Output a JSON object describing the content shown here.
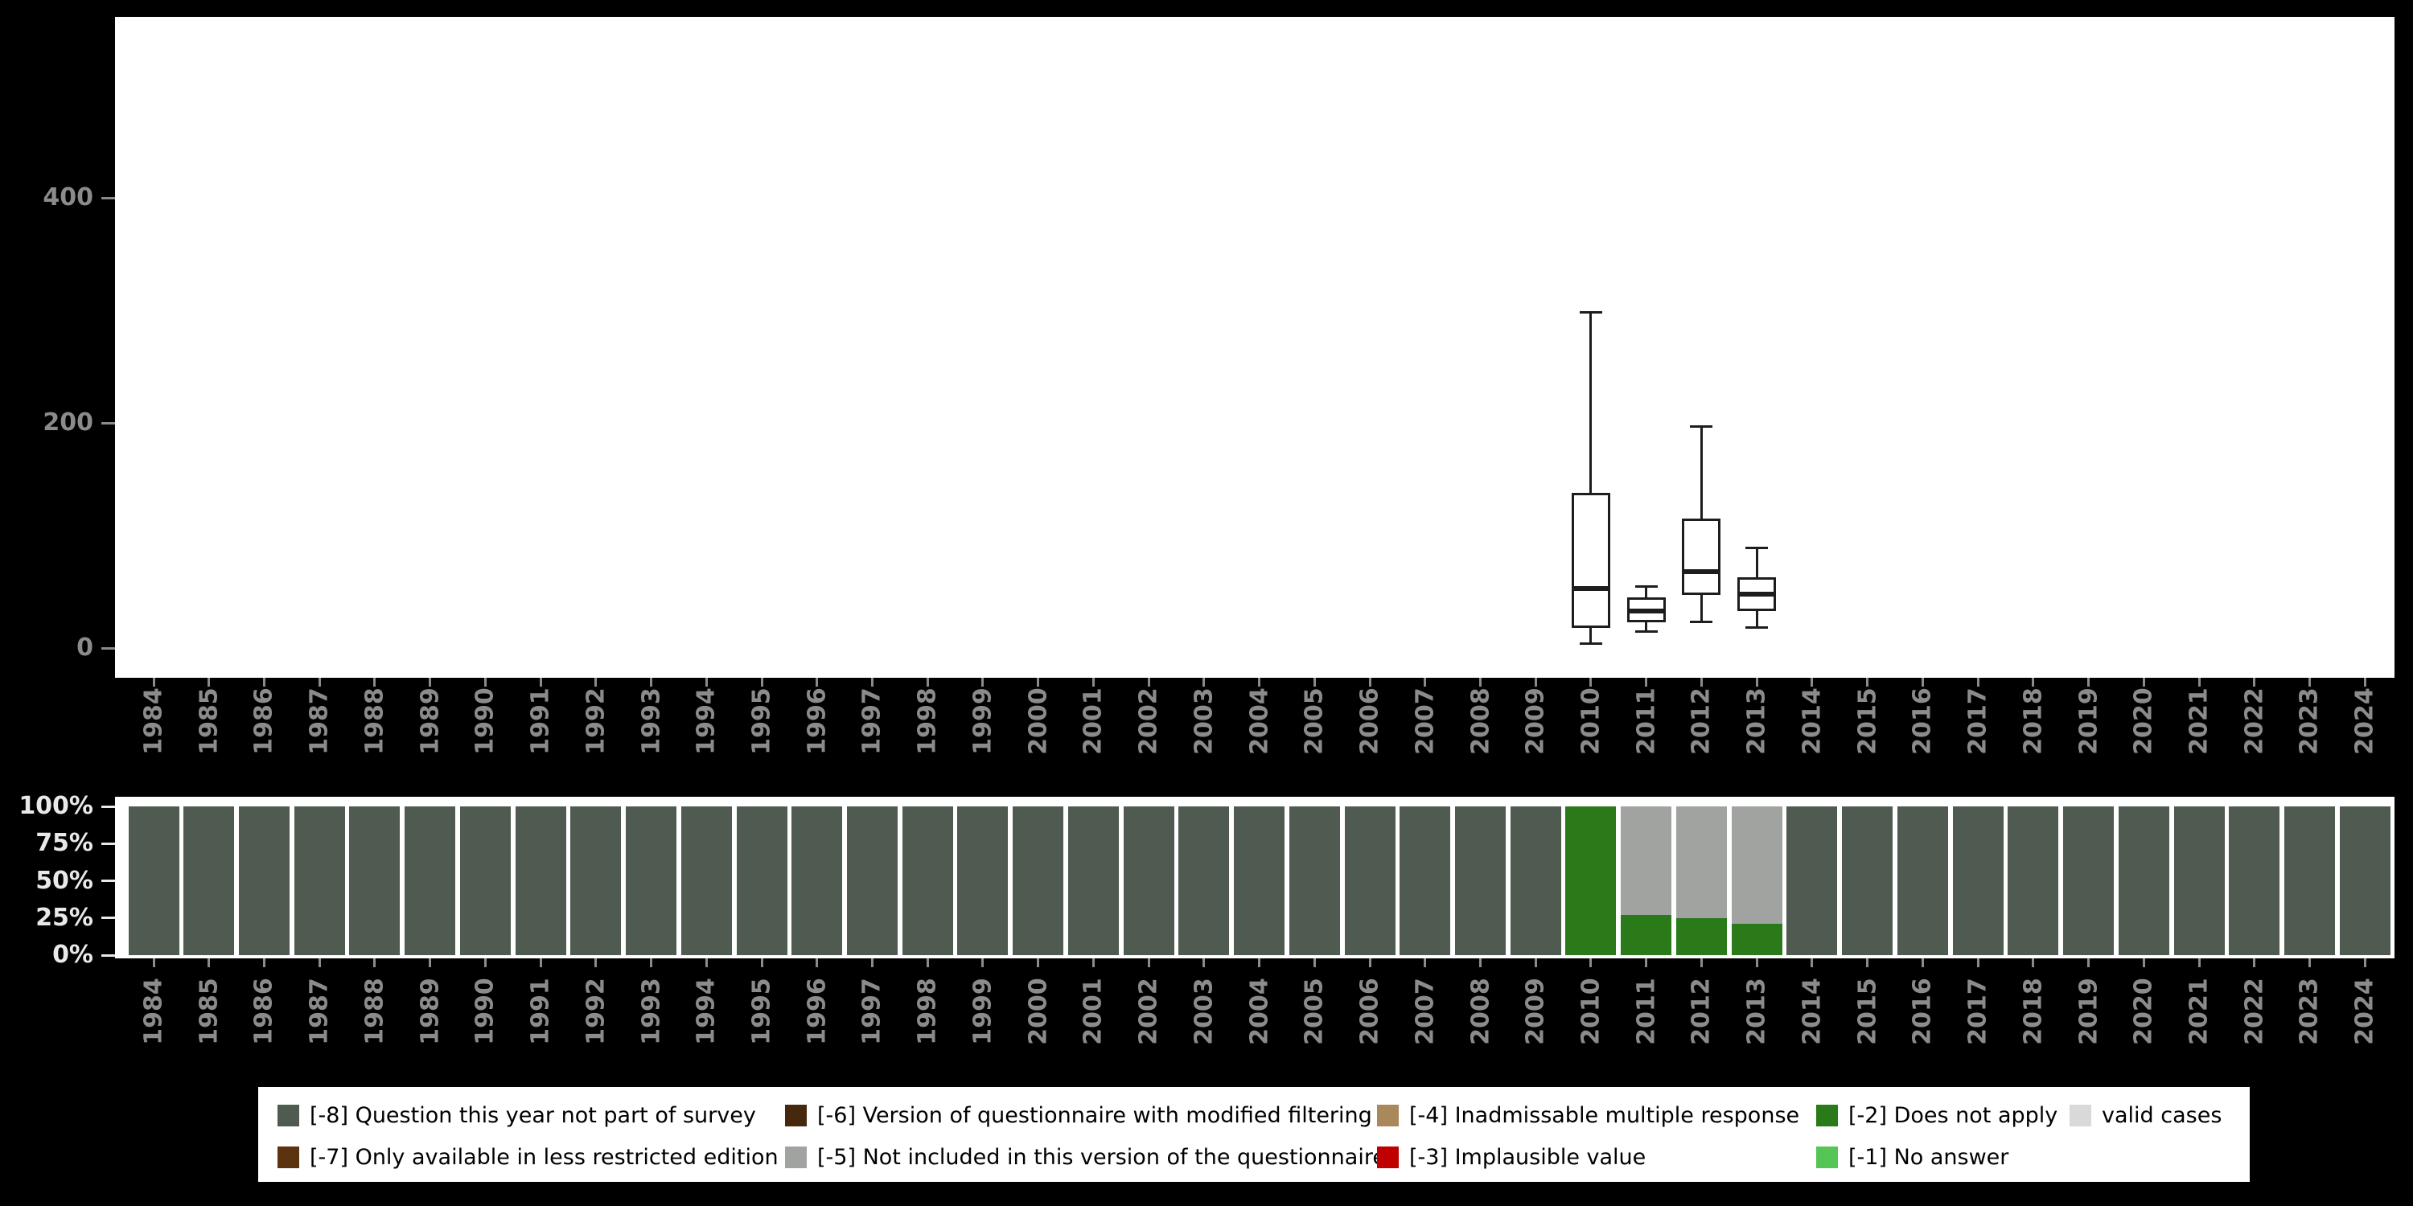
{
  "page": {
    "background": "#000000",
    "panel_background": "#ffffff",
    "axis_text_color": "#8b8b8b",
    "percent_text_color": "#e9e9e9",
    "box_line_color": "#1d1d1d"
  },
  "years": [
    "1984",
    "1985",
    "1986",
    "1987",
    "1988",
    "1989",
    "1990",
    "1991",
    "1992",
    "1993",
    "1994",
    "1995",
    "1996",
    "1997",
    "1998",
    "1999",
    "2000",
    "2001",
    "2002",
    "2003",
    "2004",
    "2005",
    "2006",
    "2007",
    "2008",
    "2009",
    "2010",
    "2011",
    "2012",
    "2013",
    "2014",
    "2015",
    "2016",
    "2017",
    "2018",
    "2019",
    "2020",
    "2021",
    "2022",
    "2023",
    "2024"
  ],
  "palette": {
    "-8": {
      "label": "[-8] Question this year not part of survey",
      "color": "#4f5a50"
    },
    "-7": {
      "label": "[-7] Only available in less restricted edition",
      "color": "#5b330f"
    },
    "-6": {
      "label": "[-6] Version of questionnaire with modified filtering",
      "color": "#46290d"
    },
    "-5": {
      "label": "[-5] Not included in this version of the questionnaire",
      "color": "#a0a3a0"
    },
    "-4": {
      "label": "[-4] Inadmissable multiple response",
      "color": "#a9895c"
    },
    "-3": {
      "label": "[-3] Implausible value",
      "color": "#c00000"
    },
    "-2": {
      "label": "[-2] Does not apply",
      "color": "#2a7a19"
    },
    "-1": {
      "label": "[-1] No answer",
      "color": "#55c655"
    },
    "valid": {
      "label": "valid cases",
      "color": "#d9d9d9"
    }
  },
  "chart_data": [
    {
      "type": "boxplot",
      "title": "",
      "xlabel": "",
      "ylabel": "",
      "ylim": [
        0,
        560
      ],
      "grid": false,
      "yticks": [
        {
          "label": "0",
          "value": 0
        },
        {
          "label": "200",
          "value": 200
        },
        {
          "label": "400",
          "value": 400
        }
      ],
      "boxes": [
        {
          "year": "2010",
          "lower_whisker": 4,
          "q1": 18,
          "median": 53,
          "q3": 138,
          "upper_whisker": 298
        },
        {
          "year": "2011",
          "lower_whisker": 15,
          "q1": 23,
          "median": 33,
          "q3": 45,
          "upper_whisker": 55
        },
        {
          "year": "2012",
          "lower_whisker": 23,
          "q1": 47,
          "median": 68,
          "q3": 115,
          "upper_whisker": 197
        },
        {
          "year": "2013",
          "lower_whisker": 18,
          "q1": 33,
          "median": 48,
          "q3": 63,
          "upper_whisker": 89
        }
      ]
    },
    {
      "type": "bar",
      "stacked": true,
      "unit": "percent",
      "ylim": [
        0,
        100
      ],
      "grid": false,
      "yticks": [
        {
          "label": "0%",
          "value": 0
        },
        {
          "label": "25%",
          "value": 25
        },
        {
          "label": "50%",
          "value": 50
        },
        {
          "label": "75%",
          "value": 75
        },
        {
          "label": "100%",
          "value": 100
        }
      ],
      "bars": [
        {
          "year": "1984",
          "segments": [
            [
              "-8",
              100
            ]
          ]
        },
        {
          "year": "1985",
          "segments": [
            [
              "-8",
              100
            ]
          ]
        },
        {
          "year": "1986",
          "segments": [
            [
              "-8",
              100
            ]
          ]
        },
        {
          "year": "1987",
          "segments": [
            [
              "-8",
              100
            ]
          ]
        },
        {
          "year": "1988",
          "segments": [
            [
              "-8",
              100
            ]
          ]
        },
        {
          "year": "1989",
          "segments": [
            [
              "-8",
              100
            ]
          ]
        },
        {
          "year": "1990",
          "segments": [
            [
              "-8",
              100
            ]
          ]
        },
        {
          "year": "1991",
          "segments": [
            [
              "-8",
              100
            ]
          ]
        },
        {
          "year": "1992",
          "segments": [
            [
              "-8",
              100
            ]
          ]
        },
        {
          "year": "1993",
          "segments": [
            [
              "-8",
              100
            ]
          ]
        },
        {
          "year": "1994",
          "segments": [
            [
              "-8",
              100
            ]
          ]
        },
        {
          "year": "1995",
          "segments": [
            [
              "-8",
              100
            ]
          ]
        },
        {
          "year": "1996",
          "segments": [
            [
              "-8",
              100
            ]
          ]
        },
        {
          "year": "1997",
          "segments": [
            [
              "-8",
              100
            ]
          ]
        },
        {
          "year": "1998",
          "segments": [
            [
              "-8",
              100
            ]
          ]
        },
        {
          "year": "1999",
          "segments": [
            [
              "-8",
              100
            ]
          ]
        },
        {
          "year": "2000",
          "segments": [
            [
              "-8",
              100
            ]
          ]
        },
        {
          "year": "2001",
          "segments": [
            [
              "-8",
              100
            ]
          ]
        },
        {
          "year": "2002",
          "segments": [
            [
              "-8",
              100
            ]
          ]
        },
        {
          "year": "2003",
          "segments": [
            [
              "-8",
              100
            ]
          ]
        },
        {
          "year": "2004",
          "segments": [
            [
              "-8",
              100
            ]
          ]
        },
        {
          "year": "2005",
          "segments": [
            [
              "-8",
              100
            ]
          ]
        },
        {
          "year": "2006",
          "segments": [
            [
              "-8",
              100
            ]
          ]
        },
        {
          "year": "2007",
          "segments": [
            [
              "-8",
              100
            ]
          ]
        },
        {
          "year": "2008",
          "segments": [
            [
              "-8",
              100
            ]
          ]
        },
        {
          "year": "2009",
          "segments": [
            [
              "-8",
              100
            ]
          ]
        },
        {
          "year": "2010",
          "segments": [
            [
              "-2",
              100
            ]
          ]
        },
        {
          "year": "2011",
          "segments": [
            [
              "-2",
              27
            ],
            [
              "-5",
              73
            ]
          ]
        },
        {
          "year": "2012",
          "segments": [
            [
              "-2",
              25
            ],
            [
              "-5",
              75
            ]
          ]
        },
        {
          "year": "2013",
          "segments": [
            [
              "-2",
              21
            ],
            [
              "-5",
              79
            ]
          ]
        },
        {
          "year": "2014",
          "segments": [
            [
              "-8",
              100
            ]
          ]
        },
        {
          "year": "2015",
          "segments": [
            [
              "-8",
              100
            ]
          ]
        },
        {
          "year": "2016",
          "segments": [
            [
              "-8",
              100
            ]
          ]
        },
        {
          "year": "2017",
          "segments": [
            [
              "-8",
              100
            ]
          ]
        },
        {
          "year": "2018",
          "segments": [
            [
              "-8",
              100
            ]
          ]
        },
        {
          "year": "2019",
          "segments": [
            [
              "-8",
              100
            ]
          ]
        },
        {
          "year": "2020",
          "segments": [
            [
              "-8",
              100
            ]
          ]
        },
        {
          "year": "2021",
          "segments": [
            [
              "-8",
              100
            ]
          ]
        },
        {
          "year": "2022",
          "segments": [
            [
              "-8",
              100
            ]
          ]
        },
        {
          "year": "2023",
          "segments": [
            [
              "-8",
              100
            ]
          ]
        },
        {
          "year": "2024",
          "segments": [
            [
              "-8",
              100
            ]
          ]
        }
      ]
    }
  ],
  "legend": {
    "rows": [
      [
        "-8",
        "-6",
        "-4",
        "-2",
        "valid"
      ],
      [
        "-7",
        "-5",
        "-3",
        "-1"
      ]
    ]
  }
}
